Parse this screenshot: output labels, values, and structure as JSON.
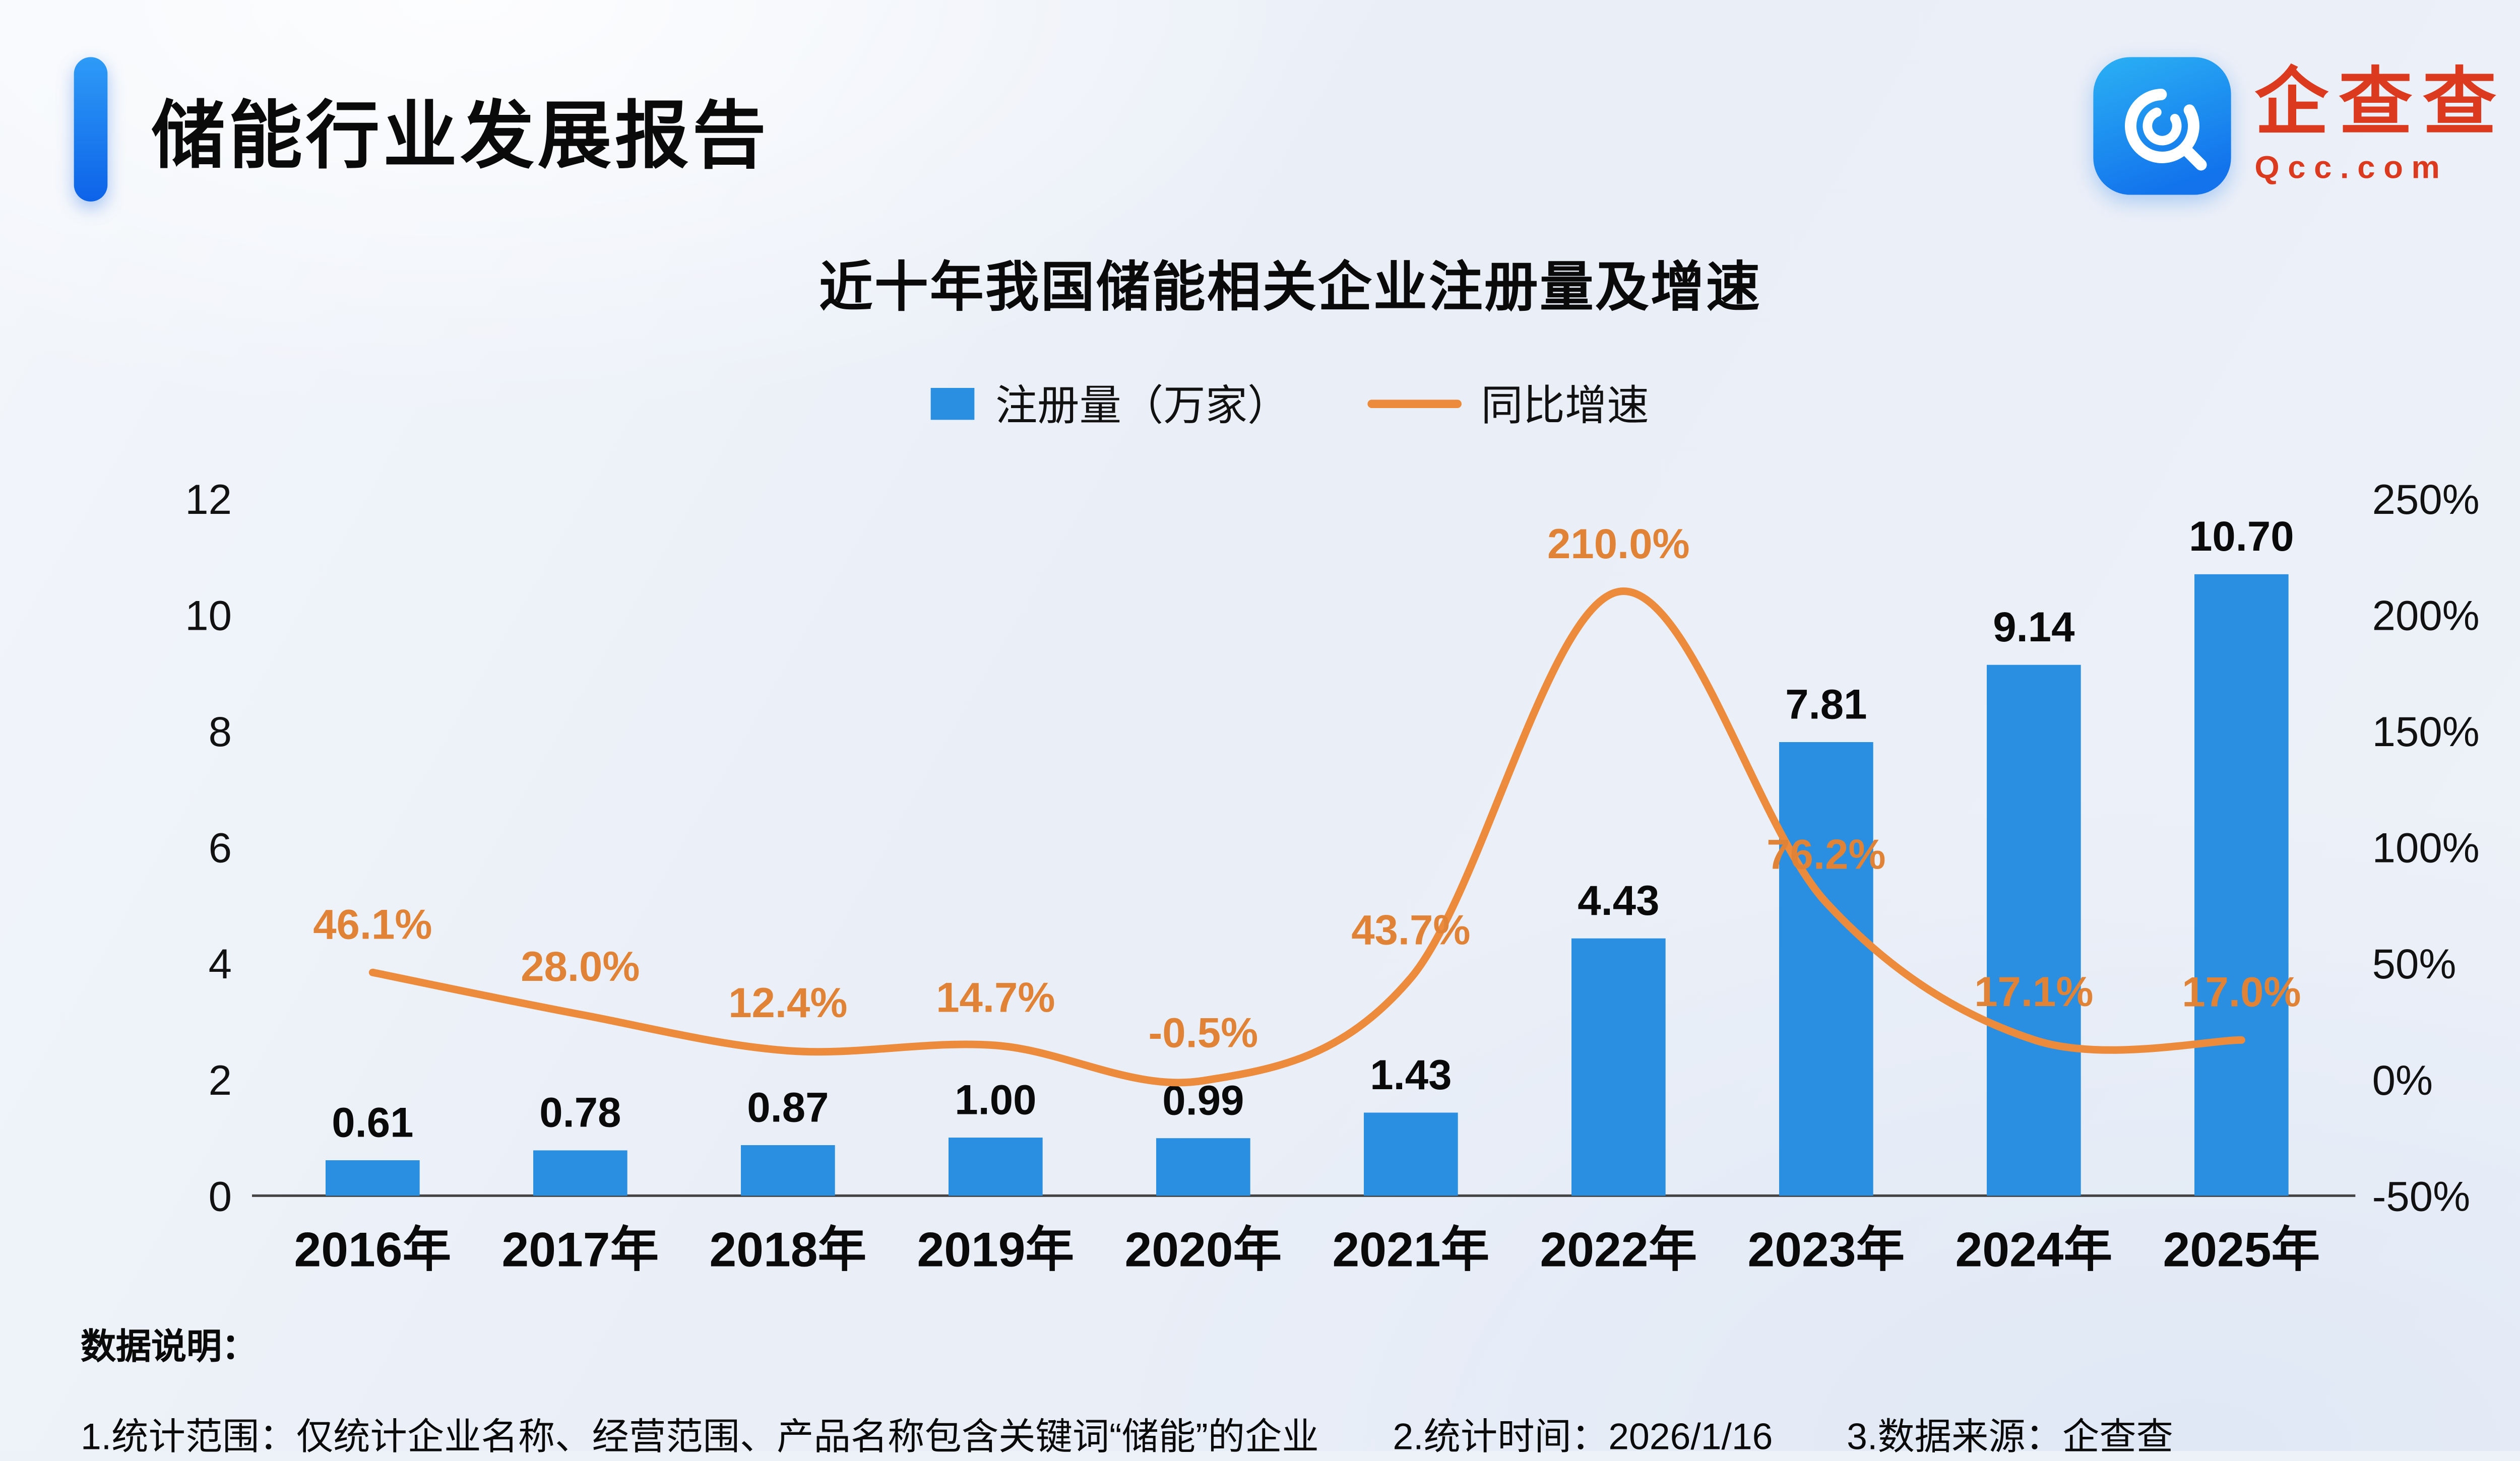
{
  "page": {
    "report_title": "储能行业发展报告",
    "logo": {
      "brand_cn": "企查查",
      "brand_en": "Qcc.com"
    }
  },
  "colors": {
    "bar_blue": "#2a8fe0",
    "line_orange": "#ED8B3D",
    "brand_red": "#dc3a1f",
    "accent_blue": "#1273ec"
  },
  "chart_data": {
    "type": "bar+line",
    "title": "近十年我国储能相关企业注册量及增速",
    "categories": [
      "2016年",
      "2017年",
      "2018年",
      "2019年",
      "2020年",
      "2021年",
      "2022年",
      "2023年",
      "2024年",
      "2025年"
    ],
    "series": [
      {
        "name": "注册量（万家）",
        "type": "bar",
        "axis": "left",
        "color": "#2a8fe0",
        "values": [
          0.61,
          0.78,
          0.87,
          1.0,
          0.99,
          1.43,
          4.43,
          7.81,
          9.14,
          10.7
        ]
      },
      {
        "name": "同比增速",
        "type": "line",
        "axis": "right",
        "unit": "%",
        "color": "#ED8B3D",
        "values": [
          46.1,
          28.0,
          12.4,
          14.7,
          -0.5,
          43.7,
          210.0,
          76.2,
          17.1,
          17.0
        ]
      }
    ],
    "bar_labels": [
      "0.61",
      "0.78",
      "0.87",
      "1.00",
      "0.99",
      "1.43",
      "4.43",
      "7.81",
      "9.14",
      "10.70"
    ],
    "line_labels": [
      "46.1%",
      "28.0%",
      "12.4%",
      "14.7%",
      "-0.5%",
      "43.7%",
      "210.0%",
      "76.2%",
      "17.1%",
      "17.0%"
    ],
    "left_axis": {
      "ticks": [
        0,
        2,
        4,
        6,
        8,
        10,
        12
      ],
      "range": [
        0,
        12
      ]
    },
    "right_axis": {
      "ticks": [
        "-50%",
        "0%",
        "50%",
        "100%",
        "150%",
        "200%",
        "250%"
      ],
      "range": [
        -50,
        250
      ]
    },
    "grid": false,
    "legend_position": "top-center"
  },
  "footnote": {
    "heading": "数据说明：",
    "items": [
      "1.统计范围：仅统计企业名称、经营范围、产品名称包含关键词“储能”的企业",
      "2.统计时间：2026/1/16",
      "3.数据来源：企查查"
    ]
  }
}
